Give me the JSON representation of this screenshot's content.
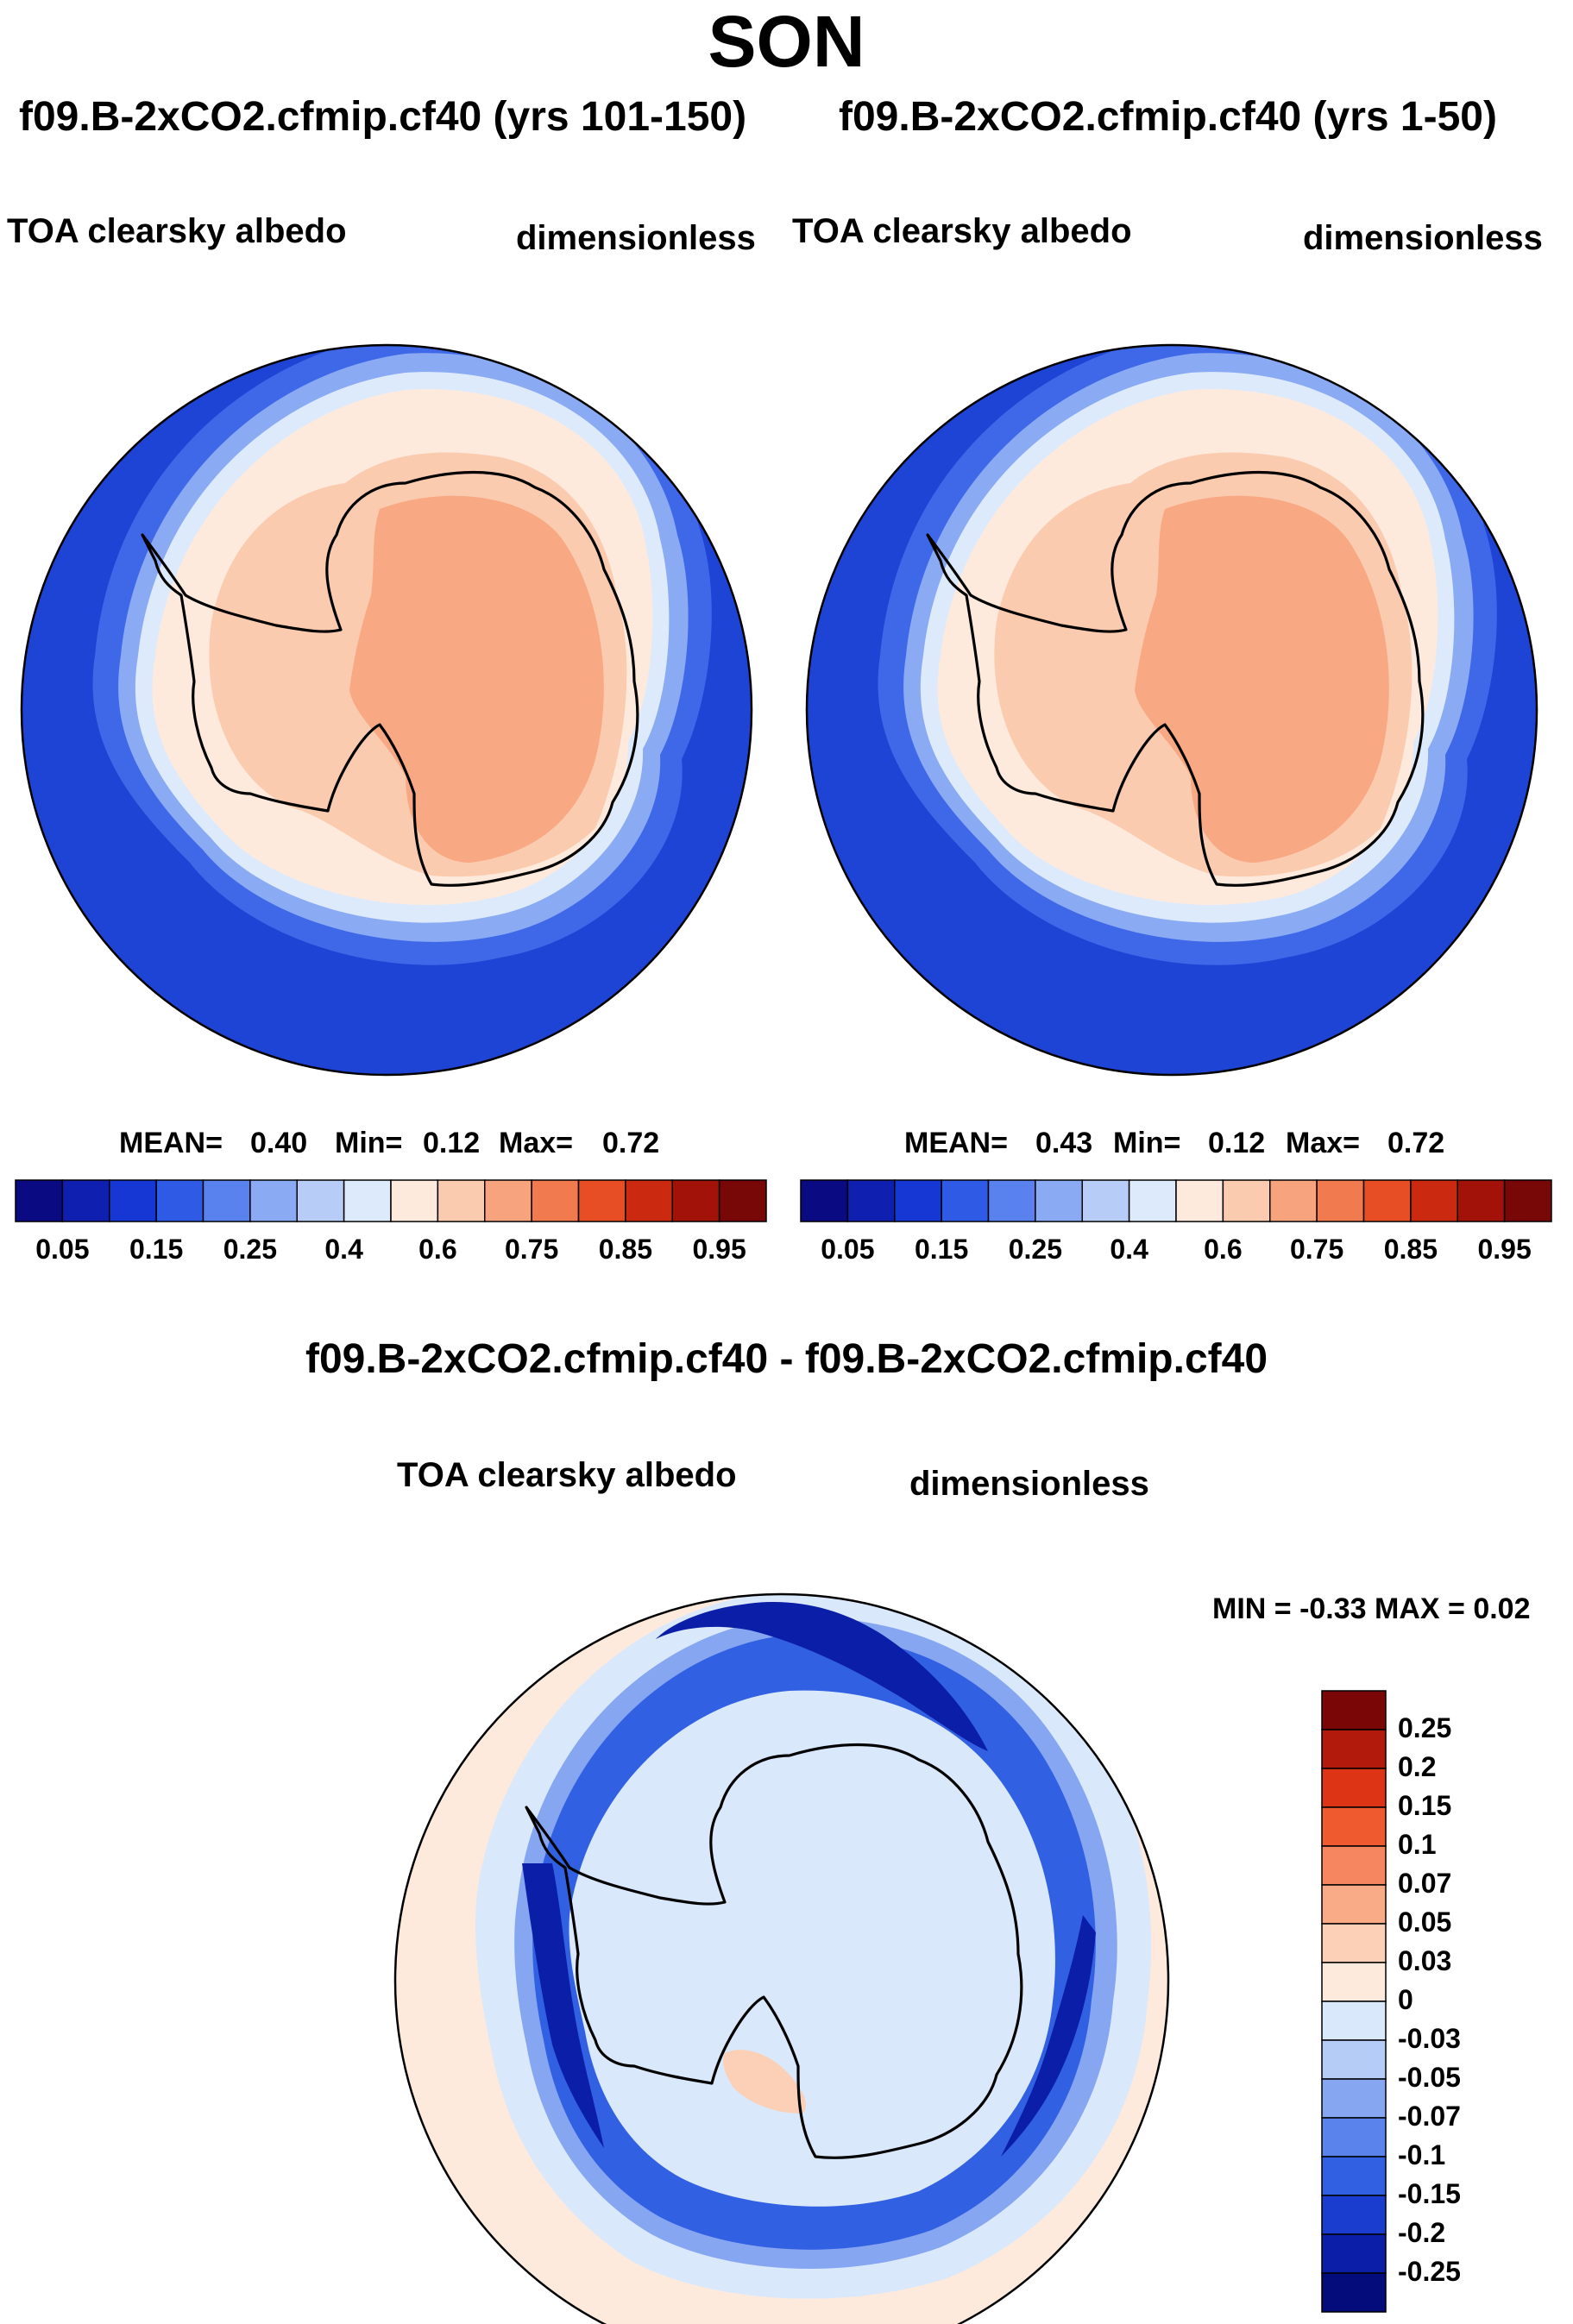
{
  "figure": {
    "title": "SON"
  },
  "chart_data": [
    {
      "type": "heatmap",
      "projection": "south-polar-stereographic",
      "title": "f09.B-2xCO2.cfmip.cf40 (yrs 101-150)",
      "left_label": "TOA clearsky albedo",
      "right_label": "dimensionless",
      "stats": {
        "mean_label": "MEAN=",
        "mean": "0.40",
        "min_label": "Min=",
        "min": "0.12",
        "max_label": "Max=",
        "max": "0.72"
      },
      "colorbar": {
        "orientation": "horizontal",
        "levels": [
          "0.05",
          "0.15",
          "0.25",
          "0.4",
          "0.6",
          "0.75",
          "0.85",
          "0.95"
        ],
        "colors": [
          "#0a0a82",
          "#0f1fb0",
          "#1737d4",
          "#2f5ae6",
          "#5a82ef",
          "#8aaaf4",
          "#b7cdf8",
          "#ddeafc",
          "#feeadc",
          "#fbcbb0",
          "#f7a47e",
          "#f27a4f",
          "#e84e26",
          "#cc2a10",
          "#a21208",
          "#780808"
        ]
      }
    },
    {
      "type": "heatmap",
      "projection": "south-polar-stereographic",
      "title": "f09.B-2xCO2.cfmip.cf40 (yrs 1-50)",
      "left_label": "TOA clearsky albedo",
      "right_label": "dimensionless",
      "stats": {
        "mean_label": "MEAN=",
        "mean": "0.43",
        "min_label": "Min=",
        "min": "0.12",
        "max_label": "Max=",
        "max": "0.72"
      },
      "colorbar": {
        "orientation": "horizontal",
        "levels": [
          "0.05",
          "0.15",
          "0.25",
          "0.4",
          "0.6",
          "0.75",
          "0.85",
          "0.95"
        ],
        "colors": [
          "#0a0a82",
          "#0f1fb0",
          "#1737d4",
          "#2f5ae6",
          "#5a82ef",
          "#8aaaf4",
          "#b7cdf8",
          "#ddeafc",
          "#feeadc",
          "#fbcbb0",
          "#f7a47e",
          "#f27a4f",
          "#e84e26",
          "#cc2a10",
          "#a21208",
          "#780808"
        ]
      }
    },
    {
      "type": "heatmap",
      "projection": "south-polar-stereographic",
      "title": "f09.B-2xCO2.cfmip.cf40 - f09.B-2xCO2.cfmip.cf40",
      "left_label": "TOA clearsky albedo",
      "right_label": "dimensionless",
      "stats": {
        "text": "MIN =  -0.33 MAX =   0.02"
      },
      "colorbar": {
        "orientation": "vertical",
        "levels": [
          "0.25",
          "0.2",
          "0.15",
          "0.1",
          "0.07",
          "0.05",
          "0.03",
          "0",
          "-0.03",
          "-0.05",
          "-0.07",
          "-0.1",
          "-0.15",
          "-0.2",
          "-0.25"
        ],
        "colors": [
          "#7a0606",
          "#b21a0c",
          "#de3416",
          "#ef5a2e",
          "#f58660",
          "#f9ab88",
          "#fcd0b6",
          "#feeadc",
          "#dae8fb",
          "#b4ccf6",
          "#86a6f2",
          "#5a84ec",
          "#3260e2",
          "#1a3ccf",
          "#0b1ea8",
          "#040b7a"
        ]
      }
    }
  ]
}
